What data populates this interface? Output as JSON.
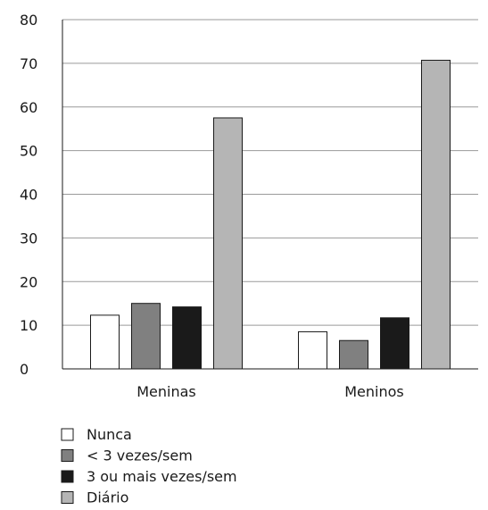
{
  "chart_data": {
    "type": "bar",
    "categories": [
      "Meninas",
      "Meninos"
    ],
    "series": [
      {
        "name": "Nunca",
        "values": [
          12.3,
          8.5
        ],
        "color": "#ffffff"
      },
      {
        "name": "< 3 vezes/sem",
        "values": [
          15.0,
          6.5
        ],
        "color": "#808080"
      },
      {
        "name": "3 ou mais vezes/sem",
        "values": [
          14.2,
          11.7
        ],
        "color": "#1a1a1a"
      },
      {
        "name": "Diário",
        "values": [
          57.5,
          70.7
        ],
        "color": "#b5b5b5"
      }
    ],
    "title": "",
    "xlabel": "",
    "ylabel": "",
    "ylim": [
      0,
      80
    ],
    "yticks": [
      "0",
      "10",
      "20",
      "30",
      "40",
      "50",
      "60",
      "70",
      "80"
    ],
    "grid": true,
    "legend_position": "bottom-left"
  }
}
